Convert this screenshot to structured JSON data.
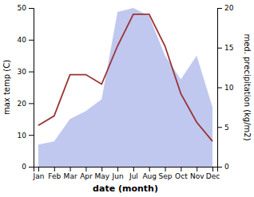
{
  "chart_data": {
    "type": "line",
    "categories": [
      "Jan",
      "Feb",
      "Mar",
      "Apr",
      "May",
      "Jun",
      "Jul",
      "Aug",
      "Sep",
      "Oct",
      "Nov",
      "Dec"
    ],
    "series": [
      {
        "type": "area",
        "axis": "y2",
        "color": "#c0c8f0",
        "values": [
          2.8,
          3.2,
          6.0,
          7.0,
          8.5,
          19.5,
          20.0,
          19.0,
          14.0,
          11.0,
          14.0,
          7.5
        ]
      },
      {
        "type": "line",
        "color": "#993333",
        "values": [
          13,
          16,
          29,
          29,
          26,
          38,
          48,
          48,
          38,
          23,
          14,
          8
        ]
      }
    ],
    "xlabel": "date (month)",
    "ylabel": "max temp (C)",
    "y2label": "med. precipitation (kg/m2)",
    "ylim": [
      0,
      50
    ],
    "yticks": [
      0,
      10,
      20,
      30,
      40,
      50
    ],
    "y2lim": [
      0,
      20
    ],
    "y2ticks": [
      0,
      5,
      10,
      15,
      20
    ],
    "grid": false
  }
}
